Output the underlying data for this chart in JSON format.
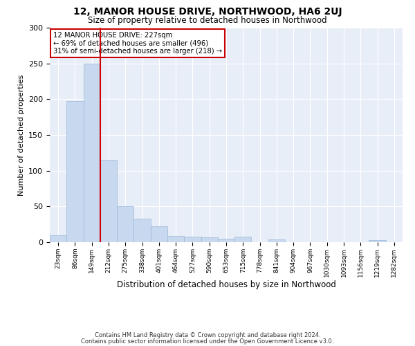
{
  "title": "12, MANOR HOUSE DRIVE, NORTHWOOD, HA6 2UJ",
  "subtitle": "Size of property relative to detached houses in Northwood",
  "xlabel": "Distribution of detached houses by size in Northwood",
  "ylabel": "Number of detached properties",
  "categories": [
    "23sqm",
    "86sqm",
    "149sqm",
    "212sqm",
    "275sqm",
    "338sqm",
    "401sqm",
    "464sqm",
    "527sqm",
    "590sqm",
    "653sqm",
    "715sqm",
    "778sqm",
    "841sqm",
    "904sqm",
    "967sqm",
    "1030sqm",
    "1093sqm",
    "1156sqm",
    "1219sqm",
    "1282sqm"
  ],
  "values": [
    10,
    197,
    250,
    115,
    50,
    33,
    22,
    9,
    8,
    7,
    5,
    8,
    0,
    4,
    0,
    0,
    0,
    0,
    0,
    3,
    0
  ],
  "bar_color": "#c8d8ee",
  "bar_edge_color": "#9ab8d8",
  "vline_color": "#cc0000",
  "vline_x_index": 3,
  "annotation_text_line1": "12 MANOR HOUSE DRIVE: 227sqm",
  "annotation_text_line2": "← 69% of detached houses are smaller (496)",
  "annotation_text_line3": "31% of semi-detached houses are larger (218) →",
  "annotation_box_color": "#ffffff",
  "annotation_border_color": "#cc0000",
  "ylim": [
    0,
    300
  ],
  "yticks": [
    0,
    50,
    100,
    150,
    200,
    250,
    300
  ],
  "background_color": "#e8eef8",
  "footer_line1": "Contains HM Land Registry data © Crown copyright and database right 2024.",
  "footer_line2": "Contains public sector information licensed under the Open Government Licence v3.0."
}
